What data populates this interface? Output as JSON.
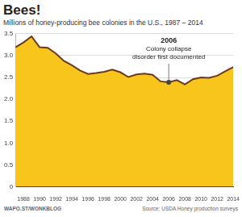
{
  "chart_data": {
    "type": "line",
    "title": "Bees!",
    "subtitle": "Millions of honey-producing bee colonies in the U.S., 1987 – 2014",
    "x": [
      1987,
      1988,
      1989,
      1990,
      1991,
      1992,
      1993,
      1994,
      1995,
      1996,
      1997,
      1998,
      1999,
      2000,
      2001,
      2002,
      2003,
      2004,
      2005,
      2006,
      2007,
      2008,
      2009,
      2010,
      2011,
      2012,
      2013,
      2014
    ],
    "values": [
      3.19,
      3.3,
      3.44,
      3.19,
      3.18,
      3.05,
      2.88,
      2.78,
      2.66,
      2.58,
      2.6,
      2.63,
      2.68,
      2.62,
      2.51,
      2.57,
      2.59,
      2.56,
      2.41,
      2.39,
      2.44,
      2.34,
      2.46,
      2.5,
      2.49,
      2.54,
      2.64,
      2.74
    ],
    "color": "#f8c51c",
    "xlim": [
      1987,
      2014
    ],
    "xticks": [
      1988,
      1990,
      1992,
      1994,
      1996,
      1998,
      2000,
      2002,
      2004,
      2006,
      2008,
      2010,
      2012,
      2014
    ],
    "ylim": [
      0,
      3.5
    ],
    "yticks": [
      0,
      0.5,
      {
        "value": 1,
        "label": "1.0"
      },
      1.5,
      {
        "value": 2,
        "label": "2.0"
      },
      2.5,
      {
        "value": 3,
        "label": "3.0"
      },
      3.5
    ],
    "grid": true,
    "annotations": [
      {
        "x": 2006,
        "y": 2.39,
        "title": "2006",
        "text": [
          "Colony collapse",
          "disorder first documented"
        ]
      }
    ],
    "credit": "WAPO.ST/WONKBLOG",
    "source": "Source: USDA Honey production surveys"
  }
}
